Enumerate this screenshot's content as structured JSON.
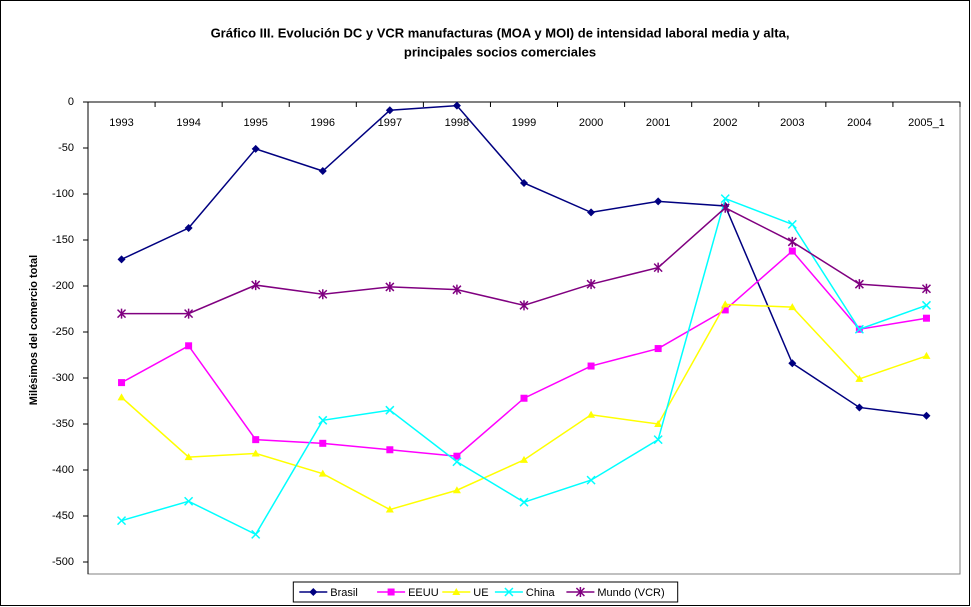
{
  "chart_data": {
    "type": "line",
    "title": [
      "Gráfico III. Evolución DC y VCR manufacturas (MOA y MOI) de intensidad laboral media y alta,",
      "principales socios comerciales"
    ],
    "y_label": "Milésimos del comercio total",
    "categories": [
      "1993",
      "1994",
      "1995",
      "1996",
      "1997",
      "1998",
      "1999",
      "2000",
      "2001",
      "2002",
      "2003",
      "2004",
      "2005_1"
    ],
    "series": [
      {
        "name": "Brasil",
        "color": "#000080",
        "marker": "diamond",
        "values": [
          -171,
          -137,
          -51,
          -75,
          -9,
          -4,
          -88,
          -120,
          -108,
          -113,
          -284,
          -332,
          -341
        ]
      },
      {
        "name": "EEUU",
        "color": "#ff00ff",
        "marker": "square",
        "values": [
          -305,
          -265,
          -367,
          -371,
          -378,
          -385,
          -322,
          -287,
          -268,
          -226,
          -162,
          -247,
          -235
        ]
      },
      {
        "name": "UE",
        "color": "#ffff00",
        "marker": "triangle",
        "values": [
          -321,
          -386,
          -382,
          -404,
          -443,
          -422,
          -389,
          -340,
          -350,
          -220,
          -223,
          -301,
          -276
        ]
      },
      {
        "name": "China",
        "color": "#00ffff",
        "marker": "x",
        "values": [
          -455,
          -434,
          -470,
          -346,
          -335,
          -391,
          -435,
          -411,
          -367,
          -105,
          -133,
          -247,
          -221
        ]
      },
      {
        "name": "Mundo (VCR)",
        "color": "#800080",
        "marker": "star",
        "values": [
          -230,
          -230,
          -199,
          -209,
          -201,
          -204,
          -221,
          -198,
          -180,
          -115,
          -152,
          -198,
          -203
        ]
      }
    ],
    "ylim": [
      -500,
      0
    ],
    "yticks": [
      0,
      -50,
      -100,
      -150,
      -200,
      -250,
      -300,
      -350,
      -400,
      -450,
      -500
    ],
    "legend": "bottom"
  }
}
